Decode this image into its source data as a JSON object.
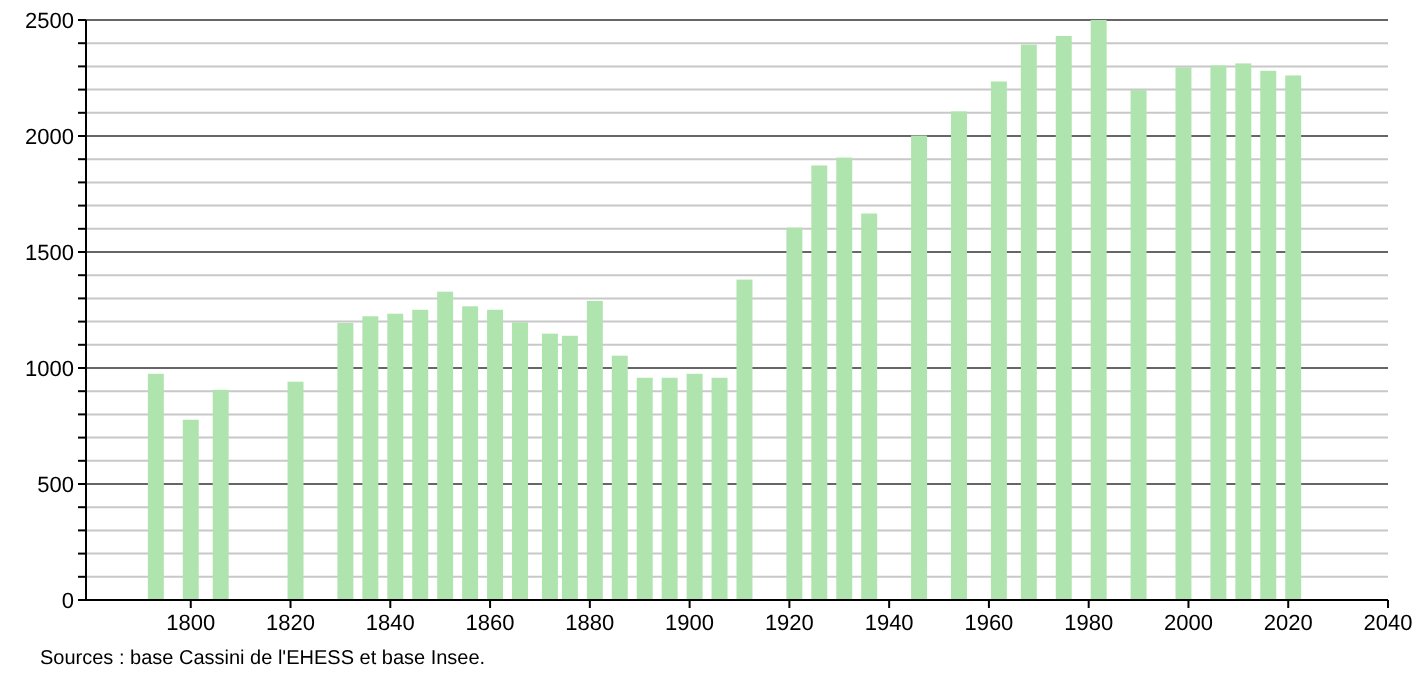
{
  "chart_data": {
    "type": "bar",
    "x": [
      1793,
      1800,
      1806,
      1821,
      1831,
      1836,
      1841,
      1846,
      1851,
      1856,
      1861,
      1866,
      1872,
      1876,
      1881,
      1886,
      1891,
      1896,
      1901,
      1906,
      1911,
      1921,
      1926,
      1931,
      1936,
      1946,
      1954,
      1962,
      1968,
      1975,
      1982,
      1990,
      1999,
      2006,
      2011,
      2016,
      2021
    ],
    "values": [
      975,
      777,
      906,
      941,
      1194,
      1223,
      1234,
      1251,
      1329,
      1266,
      1251,
      1197,
      1148,
      1139,
      1289,
      1053,
      958,
      958,
      975,
      958,
      1381,
      1605,
      1873,
      1907,
      1666,
      2002,
      2106,
      2235,
      2394,
      2431,
      2500,
      2198,
      2296,
      2304,
      2313,
      2281,
      2261
    ],
    "color": "#b0e4ae",
    "xlim": [
      1779,
      2040
    ],
    "xticks": [
      1800,
      1820,
      1840,
      1860,
      1880,
      1900,
      1920,
      1940,
      1960,
      1980,
      2000,
      2020,
      2040
    ],
    "ylim": [
      0,
      2500
    ],
    "yticks": [
      0,
      {
        "value": 100,
        "label": null
      },
      {
        "value": 200,
        "label": null
      },
      {
        "value": 300,
        "label": null
      },
      {
        "value": 400,
        "label": null
      },
      500,
      {
        "value": 600,
        "label": null
      },
      {
        "value": 700,
        "label": null
      },
      {
        "value": 800,
        "label": null
      },
      {
        "value": 900,
        "label": null
      },
      1000,
      {
        "value": 1100,
        "label": null
      },
      {
        "value": 1200,
        "label": null
      },
      {
        "value": 1300,
        "label": null
      },
      {
        "value": 1400,
        "label": null
      },
      1500,
      {
        "value": 1600,
        "label": null
      },
      {
        "value": 1700,
        "label": null
      },
      {
        "value": 1800,
        "label": null
      },
      {
        "value": 1900,
        "label": null
      },
      2000,
      {
        "value": 2100,
        "label": null
      },
      {
        "value": 2200,
        "label": null
      },
      {
        "value": 2300,
        "label": null
      },
      {
        "value": 2400,
        "label": null
      },
      2500
    ],
    "grid": "y",
    "annotations": [
      "Sources : base Cassini de l'EHESS et base Insee."
    ]
  }
}
